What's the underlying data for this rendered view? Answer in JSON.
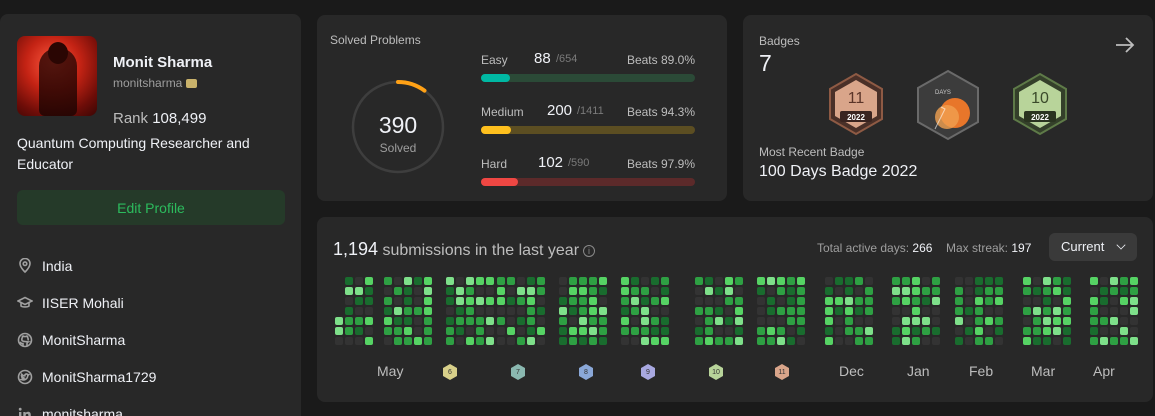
{
  "profile": {
    "name": "Monit Sharma",
    "username": "monitsharma",
    "rank_label": "Rank",
    "rank_value": "108,499",
    "bio": "Quantum Computing Researcher and Educator",
    "edit_label": "Edit Profile",
    "location": "India",
    "school": "IISER Mohali",
    "github": "MonitSharma",
    "twitter": "MonitSharma1729",
    "linkedin": "monitsharma"
  },
  "solved": {
    "title": "Solved Problems",
    "total": "390",
    "total_label": "Solved",
    "ring_fraction": 0.1,
    "rows": [
      {
        "label": "Easy",
        "count": "88",
        "total": "/654",
        "beats": "Beats 89.0%",
        "fraction": 0.135,
        "color": "#00b8a3",
        "track": "#2b4a37"
      },
      {
        "label": "Medium",
        "count": "200",
        "total": "/1411",
        "beats": "Beats 94.3%",
        "fraction": 0.142,
        "color": "#ffc01e",
        "track": "#5c4e22"
      },
      {
        "label": "Hard",
        "count": "102",
        "total": "/590",
        "beats": "Beats 97.9%",
        "fraction": 0.173,
        "color": "#ef4743",
        "track": "#5c2a2a"
      }
    ]
  },
  "badges": {
    "title": "Badges",
    "count": "7",
    "items": [
      {
        "label": "11",
        "year": "2022",
        "color": "#d9a58a",
        "edge": "#8e5a44"
      },
      {
        "label": "DAYS",
        "year": "",
        "color": "#e8762a",
        "edge": "#5a5a5a"
      },
      {
        "label": "10",
        "year": "2022",
        "color": "#b8d49a",
        "edge": "#5e7a48"
      }
    ],
    "recent_label": "Most Recent Badge",
    "recent_name": "100 Days Badge 2022"
  },
  "submissions": {
    "count": "1,194",
    "title_text": "submissions in the last year",
    "active_label": "Total active days:",
    "active_value": "266",
    "streak_label": "Max streak:",
    "streak_value": "197",
    "select_value": "Current",
    "months": [
      "May",
      "Dec",
      "Jan",
      "Feb",
      "Mar",
      "Apr"
    ],
    "mini_badges": [
      {
        "label": "6",
        "color": "#d8d08a"
      },
      {
        "label": "7",
        "color": "#8ab8b0"
      },
      {
        "label": "8",
        "color": "#8aa8d8"
      },
      {
        "label": "9",
        "color": "#a8a8e0"
      },
      {
        "label": "10",
        "color": "#b8d49a"
      },
      {
        "label": "11",
        "color": "#d9a58a"
      }
    ],
    "colors": [
      "#333333",
      "#0e4429",
      "#196c2e",
      "#2ea043",
      "#56d364",
      "#7ee08a"
    ]
  }
}
